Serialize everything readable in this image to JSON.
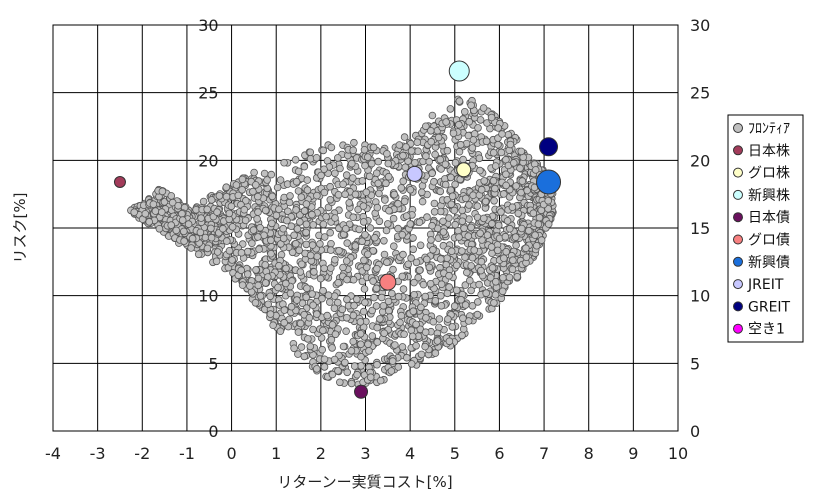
{
  "chart_data": {
    "type": "scatter",
    "xlabel": "リターンー実質コスト[%]",
    "ylabel": "リスク[%]",
    "xlim": [
      -4,
      10
    ],
    "ylim": [
      0,
      30
    ],
    "x_ticks": [
      "-4",
      "-3",
      "-2",
      "-1",
      "0",
      "1",
      "2",
      "3",
      "4",
      "5",
      "6",
      "7",
      "8",
      "9",
      "10"
    ],
    "y_ticks": [
      "0",
      "5",
      "10",
      "15",
      "20",
      "25",
      "30"
    ],
    "grid": true,
    "legend_position": "right",
    "series": [
      {
        "name": "ﾌﾛﾝﾃｨｱ",
        "color": "#c0c0c0",
        "note_points": "dense cloud of several thousand points",
        "envelope": {
          "upper": [
            [
              -2.3,
              16.2
            ],
            [
              -1.6,
              18.0
            ],
            [
              -1.0,
              16.5
            ],
            [
              0.4,
              19.0
            ],
            [
              1.5,
              20.5
            ],
            [
              2.5,
              21.5
            ],
            [
              3.5,
              21.0
            ],
            [
              4.2,
              22.5
            ],
            [
              4.8,
              24.3
            ],
            [
              5.3,
              25.0
            ],
            [
              6.0,
              23.0
            ],
            [
              6.8,
              20.0
            ],
            [
              7.2,
              18.5
            ]
          ],
          "lower": [
            [
              -2.3,
              16.2
            ],
            [
              -1.0,
              13.5
            ],
            [
              0.0,
              11.5
            ],
            [
              0.5,
              9.5
            ],
            [
              1.0,
              7.5
            ],
            [
              1.6,
              5.2
            ],
            [
              2.3,
              3.5
            ],
            [
              3.0,
              3.2
            ],
            [
              4.0,
              4.5
            ],
            [
              5.0,
              6.5
            ],
            [
              6.0,
              9.5
            ],
            [
              6.8,
              13.0
            ],
            [
              7.2,
              16.0
            ]
          ]
        }
      },
      {
        "name": "日本株",
        "color": "#a23b5a",
        "points": [
          {
            "x": -2.5,
            "y": 18.4
          }
        ]
      },
      {
        "name": "グロ株",
        "color": "#ffffc8",
        "points": [
          {
            "x": 5.2,
            "y": 19.3
          }
        ]
      },
      {
        "name": "新興株",
        "color": "#ccffff",
        "points": [
          {
            "x": 5.1,
            "y": 26.6
          }
        ]
      },
      {
        "name": "日本債",
        "color": "#6a105e",
        "points": [
          {
            "x": 2.9,
            "y": 2.9
          }
        ]
      },
      {
        "name": "グロ債",
        "color": "#f88080",
        "points": [
          {
            "x": 3.5,
            "y": 11.0
          }
        ]
      },
      {
        "name": "新興債",
        "color": "#1a6fdc",
        "points": [
          {
            "x": 7.1,
            "y": 18.4
          }
        ]
      },
      {
        "name": "JREIT",
        "color": "#c8c8ff",
        "points": [
          {
            "x": 4.1,
            "y": 19.0
          }
        ]
      },
      {
        "name": "GREIT",
        "color": "#000080",
        "points": [
          {
            "x": 7.1,
            "y": 21.0
          }
        ]
      },
      {
        "name": "空き1",
        "color": "#ff00ff",
        "points": []
      }
    ]
  }
}
